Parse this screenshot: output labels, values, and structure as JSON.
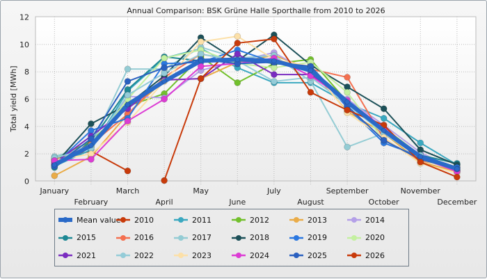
{
  "chart_data": {
    "type": "line",
    "title": "Annual Comparison: BSK Grüne Halle Sporthalle  from 2010 to 2026",
    "xlabel": "",
    "ylabel": "Total yield [MWh]",
    "ylim": [
      0,
      12
    ],
    "yticks": [
      "0",
      "2",
      "4",
      "6",
      "8",
      "10",
      "12"
    ],
    "categories": [
      "January",
      "February",
      "March",
      "April",
      "May",
      "June",
      "July",
      "August",
      "September",
      "October",
      "November",
      "December"
    ],
    "grid": true,
    "legend_position": "bottom",
    "series": [
      {
        "name": "Mean value",
        "color": "#2a6ac8",
        "thick": true,
        "values": [
          1.2,
          2.6,
          5.6,
          7.3,
          8.8,
          8.9,
          8.8,
          8.1,
          5.8,
          3.7,
          1.8,
          0.9
        ]
      },
      {
        "name": "2010",
        "color": "#c83a0a",
        "values": [
          1.6,
          2.2,
          0.75,
          null,
          null,
          null,
          null,
          null,
          null,
          null,
          null,
          null
        ]
      },
      {
        "name": "2011",
        "color": "#3aa8c0",
        "values": [
          1.1,
          2.3,
          6.6,
          9.0,
          9.7,
          8.3,
          7.2,
          7.2,
          5.7,
          4.6,
          2.8,
          1.2
        ]
      },
      {
        "name": "2012",
        "color": "#72c02c",
        "values": [
          1.7,
          2.9,
          5.5,
          6.4,
          9.1,
          7.2,
          8.6,
          8.9,
          5.8,
          3.9,
          1.9,
          1.0
        ]
      },
      {
        "name": "2013",
        "color": "#eaac48",
        "values": [
          0.4,
          1.8,
          4.9,
          7.4,
          7.5,
          8.7,
          9.2,
          8.2,
          5.1,
          3.5,
          1.4,
          0.7
        ]
      },
      {
        "name": "2014",
        "color": "#b4a0e8",
        "values": [
          1.4,
          2.5,
          6.2,
          6.1,
          8.1,
          8.8,
          9.4,
          7.9,
          6.0,
          4.1,
          2.1,
          0.8
        ]
      },
      {
        "name": "2015",
        "color": "#1e8894",
        "values": [
          1.0,
          2.9,
          6.7,
          9.1,
          8.8,
          9.0,
          8.6,
          8.4,
          5.6,
          3.8,
          1.9,
          1.3
        ]
      },
      {
        "name": "2016",
        "color": "#f47050",
        "values": [
          1.5,
          2.7,
          4.9,
          7.6,
          9.3,
          8.8,
          8.7,
          8.2,
          7.6,
          3.1,
          1.5,
          1.0
        ]
      },
      {
        "name": "2017",
        "color": "#94ccd4",
        "values": [
          1.8,
          2.6,
          8.2,
          8.2,
          9.8,
          9.0,
          9.2,
          7.3,
          2.5,
          3.5,
          1.7,
          0.7
        ]
      },
      {
        "name": "2018",
        "color": "#1c5058",
        "values": [
          1.2,
          4.2,
          5.6,
          7.7,
          10.5,
          8.8,
          10.7,
          8.5,
          6.9,
          5.3,
          2.3,
          1.2
        ]
      },
      {
        "name": "2019",
        "color": "#2c78e0",
        "values": [
          1.2,
          3.7,
          4.6,
          8.6,
          8.7,
          9.6,
          8.7,
          8.3,
          5.4,
          2.8,
          1.8,
          1.0
        ]
      },
      {
        "name": "2020",
        "color": "#c4f0a0",
        "values": [
          1.5,
          2.5,
          6.0,
          9.0,
          9.6,
          8.6,
          8.3,
          8.7,
          6.5,
          3.0,
          1.6,
          0.8
        ]
      },
      {
        "name": "2021",
        "color": "#7a2cc0",
        "values": [
          1.3,
          3.3,
          5.3,
          7.4,
          7.5,
          9.3,
          7.8,
          7.8,
          5.8,
          3.7,
          1.7,
          0.8
        ]
      },
      {
        "name": "2022",
        "color": "#94ccd8",
        "values": [
          1.7,
          2.4,
          6.3,
          7.9,
          9.3,
          8.8,
          7.3,
          7.6,
          5.6,
          3.5,
          1.9,
          0.8
        ]
      },
      {
        "name": "2023",
        "color": "#fce0a8",
        "values": [
          1.5,
          2.0,
          4.3,
          7.3,
          10.2,
          10.6,
          8.9,
          8.4,
          5.0,
          3.2,
          1.3,
          0.6
        ]
      },
      {
        "name": "2024",
        "color": "#dc3cd4",
        "values": [
          1.5,
          1.6,
          4.4,
          6.0,
          8.4,
          8.6,
          9.0,
          7.7,
          5.9,
          3.9,
          1.7,
          0.7
        ]
      },
      {
        "name": "2025",
        "color": "#2a60c0",
        "values": [
          1.1,
          3.1,
          7.3,
          8.3,
          8.9,
          8.6,
          8.7,
          8.4,
          5.5,
          3.0,
          1.6,
          0.9
        ]
      },
      {
        "name": "2026",
        "color": "#c83a0a",
        "values": [
          null,
          null,
          null,
          0.05,
          7.5,
          10.1,
          10.4,
          6.5,
          5.2,
          4.1,
          1.4,
          0.3
        ]
      }
    ]
  }
}
